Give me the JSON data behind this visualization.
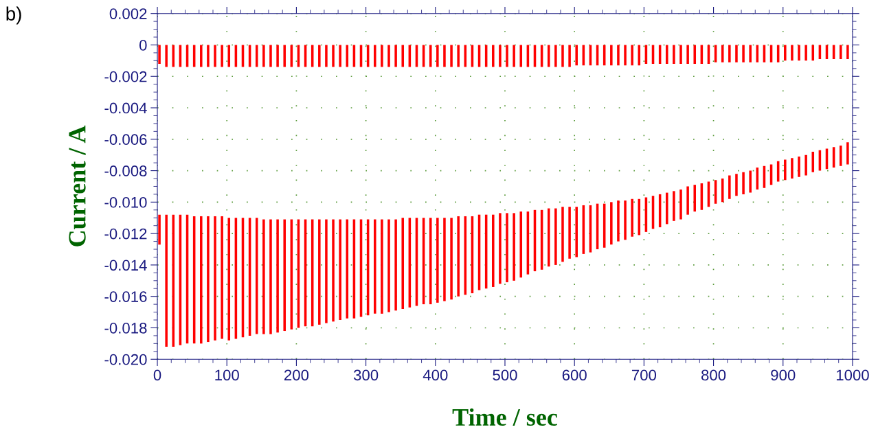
{
  "chart_data": {
    "type": "bar",
    "xlabel": "Time / sec",
    "ylabel": "Current / A",
    "annotations": [
      "b)"
    ],
    "x": [
      3,
      13,
      23,
      33,
      43,
      53,
      63,
      73,
      83,
      93,
      103,
      113,
      123,
      133,
      143,
      153,
      163,
      173,
      183,
      193,
      203,
      213,
      223,
      233,
      243,
      253,
      263,
      273,
      283,
      293,
      303,
      313,
      323,
      333,
      343,
      353,
      363,
      373,
      383,
      393,
      403,
      413,
      423,
      433,
      443,
      453,
      463,
      473,
      483,
      493,
      503,
      513,
      523,
      533,
      543,
      553,
      563,
      573,
      583,
      593,
      603,
      613,
      623,
      633,
      643,
      653,
      663,
      673,
      683,
      693,
      703,
      713,
      723,
      733,
      743,
      753,
      763,
      773,
      783,
      793,
      803,
      813,
      823,
      833,
      843,
      853,
      863,
      873,
      883,
      893,
      903,
      913,
      923,
      933,
      943,
      953,
      963,
      973,
      983,
      993
    ],
    "series": [
      {
        "color": "#ff0000",
        "base": [
          0,
          0,
          0,
          0,
          0,
          0,
          0,
          0,
          0,
          0,
          0,
          0,
          0,
          0,
          0,
          0,
          0,
          0,
          0,
          0,
          0,
          0,
          0,
          0,
          0,
          0,
          0,
          0,
          0,
          0,
          0,
          0,
          0,
          0,
          0,
          0,
          0,
          0,
          0,
          0,
          0,
          0,
          0,
          0,
          0,
          0,
          0,
          0,
          0,
          0,
          0,
          0,
          0,
          0,
          0,
          0,
          0,
          0,
          0,
          0,
          0,
          0,
          0,
          0,
          0,
          0,
          0,
          0,
          0,
          0,
          0,
          0,
          0,
          0,
          0,
          0,
          0,
          0,
          0,
          0,
          0,
          0,
          0,
          0,
          0,
          0,
          0,
          0,
          0,
          0,
          0,
          0,
          0,
          0,
          0,
          0,
          0,
          0,
          0,
          0
        ],
        "values": [
          -0.0012,
          -0.0014,
          -0.0014,
          -0.0014,
          -0.0014,
          -0.0014,
          -0.0014,
          -0.0014,
          -0.0014,
          -0.0014,
          -0.0014,
          -0.0014,
          -0.0014,
          -0.0014,
          -0.0014,
          -0.0014,
          -0.0014,
          -0.0014,
          -0.0014,
          -0.0014,
          -0.0014,
          -0.0014,
          -0.0014,
          -0.0014,
          -0.0014,
          -0.0014,
          -0.0014,
          -0.0014,
          -0.0014,
          -0.0014,
          -0.0014,
          -0.0014,
          -0.0014,
          -0.0014,
          -0.0014,
          -0.0014,
          -0.0014,
          -0.0014,
          -0.0014,
          -0.0014,
          -0.0014,
          -0.0014,
          -0.0014,
          -0.0014,
          -0.0014,
          -0.0014,
          -0.0014,
          -0.0014,
          -0.0014,
          -0.0014,
          -0.0014,
          -0.0014,
          -0.0014,
          -0.0014,
          -0.0014,
          -0.0014,
          -0.0014,
          -0.0014,
          -0.0014,
          -0.0014,
          -0.0013,
          -0.0013,
          -0.0013,
          -0.0013,
          -0.0013,
          -0.0013,
          -0.0013,
          -0.0013,
          -0.0013,
          -0.0013,
          -0.0012,
          -0.0012,
          -0.0012,
          -0.0012,
          -0.0012,
          -0.0012,
          -0.0012,
          -0.0012,
          -0.0012,
          -0.0012,
          -0.0011,
          -0.0011,
          -0.0011,
          -0.0011,
          -0.0011,
          -0.0011,
          -0.0011,
          -0.0011,
          -0.0011,
          -0.0011,
          -0.001,
          -0.001,
          -0.001,
          -0.001,
          -0.001,
          -0.0009,
          -0.0009,
          -0.0009,
          -0.0009,
          -0.0009
        ]
      },
      {
        "color": "#ff0000",
        "base": [
          -0.0108,
          -0.0108,
          -0.0108,
          -0.0108,
          -0.0108,
          -0.0109,
          -0.0109,
          -0.0109,
          -0.0109,
          -0.0109,
          -0.011,
          -0.011,
          -0.011,
          -0.011,
          -0.011,
          -0.0111,
          -0.0111,
          -0.0111,
          -0.0111,
          -0.0111,
          -0.0111,
          -0.0111,
          -0.0111,
          -0.0111,
          -0.0111,
          -0.0111,
          -0.0111,
          -0.0111,
          -0.0111,
          -0.0111,
          -0.0111,
          -0.0111,
          -0.0111,
          -0.0111,
          -0.0111,
          -0.011,
          -0.011,
          -0.011,
          -0.011,
          -0.011,
          -0.011,
          -0.011,
          -0.011,
          -0.0109,
          -0.0109,
          -0.0109,
          -0.0108,
          -0.0108,
          -0.0108,
          -0.0107,
          -0.0107,
          -0.0107,
          -0.0106,
          -0.0106,
          -0.0105,
          -0.0105,
          -0.0104,
          -0.0104,
          -0.0103,
          -0.0103,
          -0.0103,
          -0.0102,
          -0.0102,
          -0.0101,
          -0.0101,
          -0.01,
          -0.0099,
          -0.0099,
          -0.0098,
          -0.0098,
          -0.0097,
          -0.0096,
          -0.0095,
          -0.0094,
          -0.0093,
          -0.0092,
          -0.009,
          -0.0089,
          -0.0088,
          -0.0087,
          -0.0086,
          -0.0085,
          -0.0083,
          -0.0082,
          -0.0081,
          -0.008,
          -0.0078,
          -0.0077,
          -0.0076,
          -0.0074,
          -0.0073,
          -0.0072,
          -0.0071,
          -0.007,
          -0.0068,
          -0.0067,
          -0.0066,
          -0.0065,
          -0.0064,
          -0.0062
        ],
        "values": [
          -0.0019,
          -0.0084,
          -0.0084,
          -0.0083,
          -0.0082,
          -0.0081,
          -0.0081,
          -0.008,
          -0.0079,
          -0.0078,
          -0.0078,
          -0.0077,
          -0.0076,
          -0.0075,
          -0.0074,
          -0.0073,
          -0.0073,
          -0.0072,
          -0.0071,
          -0.007,
          -0.0069,
          -0.0068,
          -0.0068,
          -0.0067,
          -0.0066,
          -0.0065,
          -0.0064,
          -0.0063,
          -0.0063,
          -0.0062,
          -0.0061,
          -0.006,
          -0.006,
          -0.0059,
          -0.0058,
          -0.0058,
          -0.0057,
          -0.0056,
          -0.0055,
          -0.0055,
          -0.0054,
          -0.0053,
          -0.0052,
          -0.0051,
          -0.005,
          -0.0049,
          -0.0048,
          -0.0047,
          -0.0046,
          -0.0045,
          -0.0044,
          -0.0043,
          -0.0042,
          -0.004,
          -0.0039,
          -0.0038,
          -0.0037,
          -0.0036,
          -0.0035,
          -0.0033,
          -0.0032,
          -0.0031,
          -0.003,
          -0.0029,
          -0.0028,
          -0.0027,
          -0.0026,
          -0.0025,
          -0.0024,
          -0.0023,
          -0.0022,
          -0.0021,
          -0.0021,
          -0.002,
          -0.0019,
          -0.0019,
          -0.0018,
          -0.0017,
          -0.0017,
          -0.0016,
          -0.0015,
          -0.0015,
          -0.0015,
          -0.0014,
          -0.0014,
          -0.0014,
          -0.0014,
          -0.0014,
          -0.0013,
          -0.0013,
          -0.0013,
          -0.0013,
          -0.0013,
          -0.0013,
          -0.0013,
          -0.0013,
          -0.0013,
          -0.0013,
          -0.0013,
          -0.0014
        ]
      }
    ],
    "xlim": [
      0,
      1000
    ],
    "xticks": [
      0,
      100,
      200,
      300,
      400,
      500,
      600,
      700,
      800,
      900,
      1000
    ],
    "ylim": [
      -0.02,
      0.002
    ],
    "yticks": [
      0.002,
      0,
      {
        "value": -0.002,
        "label": "-0.002"
      },
      {
        "value": -0.004,
        "label": "-0.004"
      },
      {
        "value": -0.006,
        "label": "-0.006"
      },
      {
        "value": -0.008,
        "label": "-0.008"
      },
      {
        "value": -0.01,
        "label": "-0.010"
      },
      {
        "value": -0.012,
        "label": "-0.012"
      },
      {
        "value": -0.014,
        "label": "-0.014"
      },
      {
        "value": -0.016,
        "label": "-0.016"
      },
      {
        "value": -0.018,
        "label": "-0.018"
      },
      {
        "value": -0.02,
        "label": "-0.020"
      }
    ],
    "grid": true
  }
}
